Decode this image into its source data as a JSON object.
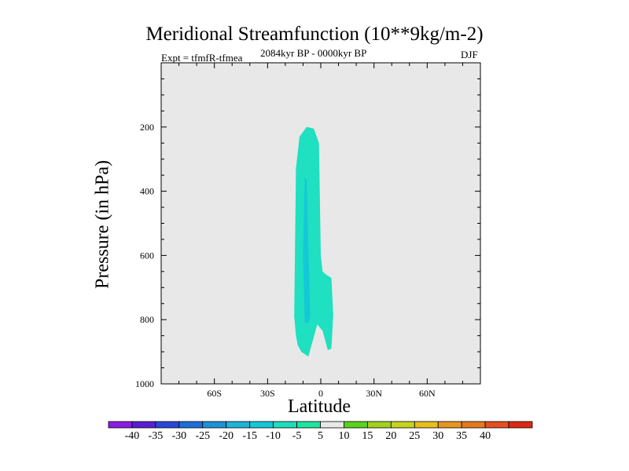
{
  "chart_data": {
    "type": "contour",
    "title": "Meridional Streamfunction (10**9kg/m-2)",
    "subtitle_left": "Expt = tfmfR-tfmea",
    "subtitle_center": "2084kyr BP - 0000kyr BP",
    "subtitle_right": "DJF",
    "xlabel": "Latitude",
    "ylabel": "Pressure (in hPa)",
    "xlim": [
      -90,
      90
    ],
    "ylim": [
      1000,
      0
    ],
    "x_ticks": [
      {
        "value": -60,
        "label": "60S"
      },
      {
        "value": -30,
        "label": "30S"
      },
      {
        "value": 0,
        "label": "0"
      },
      {
        "value": 30,
        "label": "30N"
      },
      {
        "value": 60,
        "label": "60N"
      }
    ],
    "y_ticks": [
      {
        "value": 200,
        "label": "200"
      },
      {
        "value": 400,
        "label": "400"
      },
      {
        "value": 600,
        "label": "600"
      },
      {
        "value": 800,
        "label": "800"
      },
      {
        "value": 1000,
        "label": "1000"
      }
    ],
    "background_color": "#e8e8e8",
    "filled_regions": [
      {
        "level": "-10 to -5",
        "color": "#1fe0c0",
        "points": [
          [
            -11,
            900
          ],
          [
            -7,
            915
          ],
          [
            -2,
            815
          ],
          [
            1,
            835
          ],
          [
            4,
            895
          ],
          [
            6,
            890
          ],
          [
            7,
            785
          ],
          [
            6,
            670
          ],
          [
            3,
            660
          ],
          [
            1,
            650
          ],
          [
            0,
            600
          ],
          [
            -1,
            250
          ],
          [
            -4,
            205
          ],
          [
            -8,
            200
          ],
          [
            -12,
            230
          ],
          [
            -14,
            330
          ],
          [
            -15,
            790
          ],
          [
            -14,
            850
          ],
          [
            -13,
            880
          ]
        ]
      },
      {
        "level": "-15 to -10",
        "color": "#14c8d8",
        "points": [
          [
            -9,
            360
          ],
          [
            -8,
            360
          ],
          [
            -6,
            790
          ],
          [
            -7,
            810
          ],
          [
            -9,
            810
          ],
          [
            -10,
            600
          ]
        ]
      }
    ],
    "colorbar": {
      "levels": [
        "-40",
        "-35",
        "-30",
        "-25",
        "-20",
        "-15",
        "-10",
        "-5",
        "5",
        "10",
        "15",
        "20",
        "25",
        "30",
        "35",
        "40"
      ],
      "colors": [
        "#8a1ee0",
        "#5a1ed2",
        "#2848d8",
        "#1e6ed8",
        "#1e92d8",
        "#1eb4d8",
        "#14c8d8",
        "#1edcbe",
        "#1ee6a0",
        "#e8e8e8",
        "#5ad21e",
        "#a0d21e",
        "#c8d21e",
        "#e6be1e",
        "#e6961e",
        "#e6781e",
        "#e6501e",
        "#dc2814"
      ]
    }
  }
}
